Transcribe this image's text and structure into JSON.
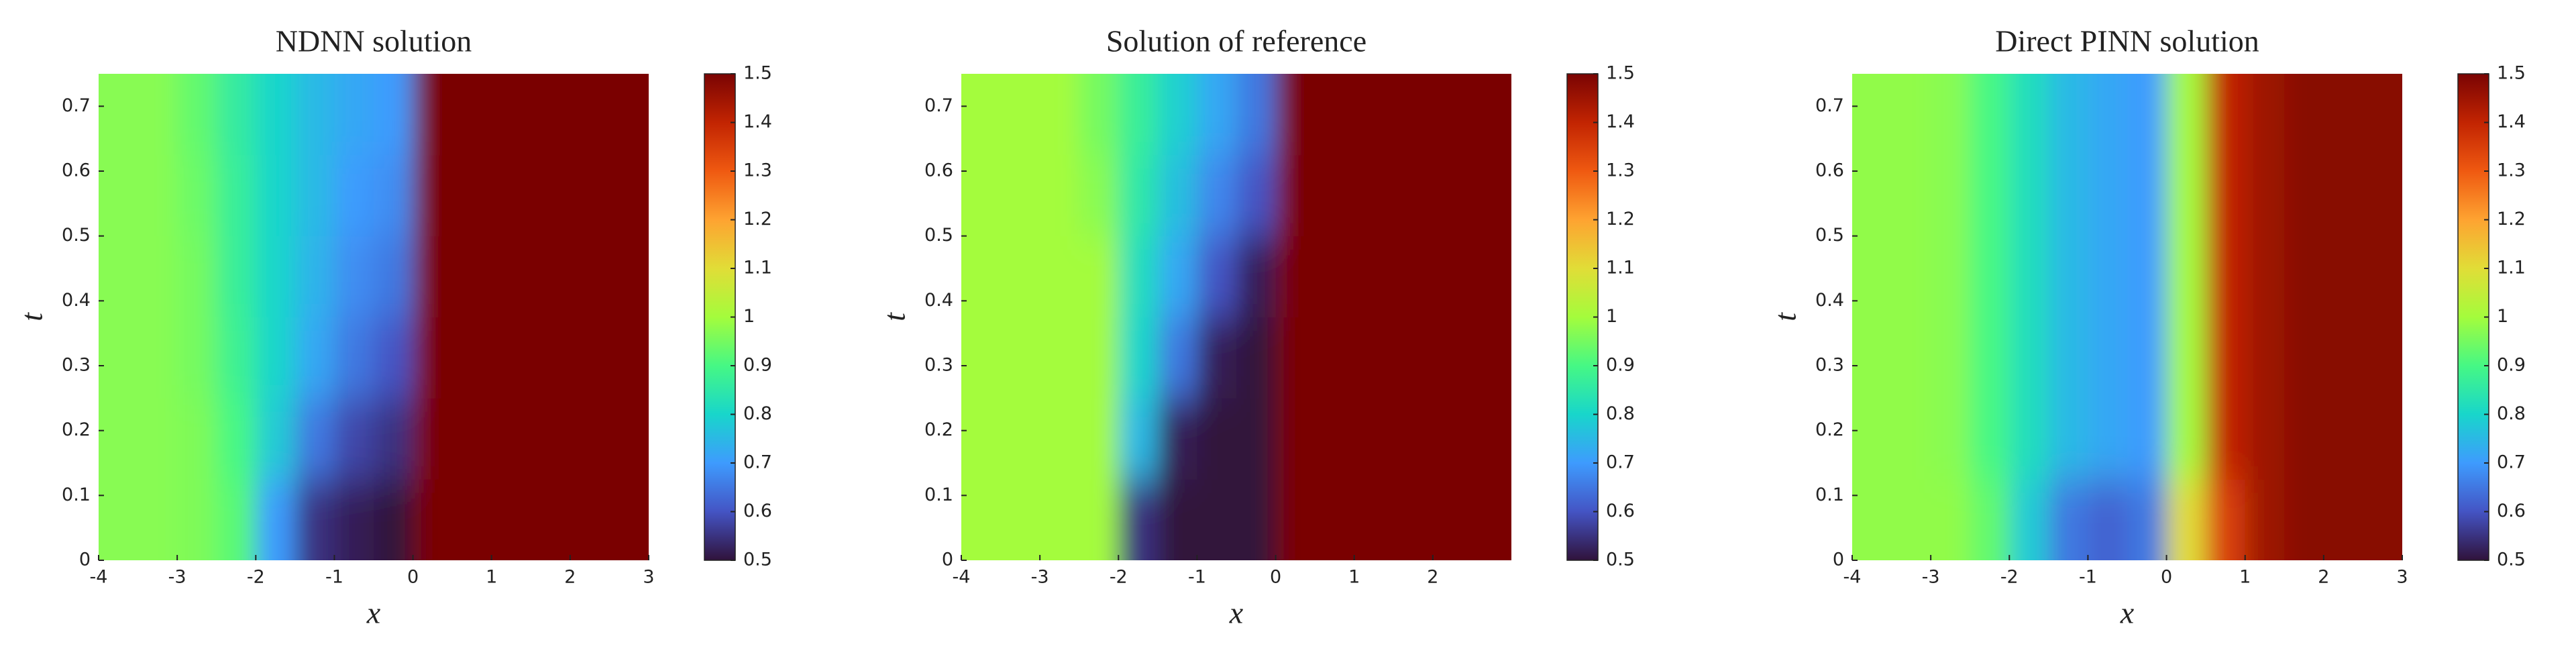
{
  "chart_data": [
    {
      "type": "heatmap",
      "title": "NDNN solution",
      "xlabel": "x",
      "ylabel": "t",
      "xlim": [
        -4,
        3
      ],
      "ylim": [
        0,
        0.75
      ],
      "xticks": [
        -4,
        -3,
        -2,
        -1,
        0,
        1,
        2,
        3
      ],
      "yticks": [
        0,
        0.1,
        0.2,
        0.3,
        0.4,
        0.5,
        0.6,
        0.7
      ],
      "clim": [
        0.5,
        1.5
      ],
      "cticks": [
        0.5,
        0.6,
        0.7,
        0.8,
        0.9,
        1,
        1.1,
        1.2,
        1.3,
        1.4,
        1.5
      ],
      "colormap": [
        "#30123b",
        "#4454c4",
        "#3e9bfe",
        "#18d6cb",
        "#46f884",
        "#a4fc3c",
        "#e1dd37",
        "#fea331",
        "#ef5911",
        "#c22402",
        "#7a0403"
      ],
      "x": [
        -3.75,
        -3.25,
        -2.75,
        -2.25,
        -1.75,
        -1.25,
        -0.75,
        -0.25,
        0.25,
        0.75,
        1.25,
        1.75,
        2.25,
        2.75
      ],
      "y": [
        0.0625,
        0.1875,
        0.3125,
        0.4375,
        0.5625,
        0.6875
      ],
      "z": [
        [
          0.97,
          0.97,
          0.96,
          0.92,
          0.7,
          0.55,
          0.52,
          0.5,
          1.5,
          1.5,
          1.5,
          1.5,
          1.5,
          1.5
        ],
        [
          0.97,
          0.97,
          0.96,
          0.9,
          0.78,
          0.65,
          0.58,
          0.55,
          1.5,
          1.5,
          1.5,
          1.5,
          1.5,
          1.5
        ],
        [
          0.97,
          0.97,
          0.95,
          0.88,
          0.8,
          0.72,
          0.65,
          0.6,
          1.5,
          1.5,
          1.5,
          1.5,
          1.5,
          1.5
        ],
        [
          0.97,
          0.97,
          0.95,
          0.87,
          0.8,
          0.74,
          0.68,
          0.65,
          1.5,
          1.5,
          1.5,
          1.5,
          1.5,
          1.5
        ],
        [
          0.97,
          0.97,
          0.94,
          0.87,
          0.8,
          0.75,
          0.7,
          0.68,
          1.5,
          1.5,
          1.5,
          1.5,
          1.5,
          1.5
        ],
        [
          0.97,
          0.97,
          0.93,
          0.86,
          0.8,
          0.75,
          0.72,
          0.7,
          1.5,
          1.5,
          1.5,
          1.5,
          1.5,
          1.5
        ]
      ]
    },
    {
      "type": "heatmap",
      "title": "Solution of reference",
      "xlabel": "x",
      "ylabel": "t",
      "xlim": [
        -4,
        3
      ],
      "ylim": [
        0,
        0.75
      ],
      "xticks": [
        -4,
        -3,
        -2,
        -1,
        0,
        1,
        2
      ],
      "yticks": [
        0,
        0.1,
        0.2,
        0.3,
        0.4,
        0.5,
        0.6,
        0.7
      ],
      "clim": [
        0.5,
        1.5
      ],
      "cticks": [
        0.5,
        0.6,
        0.7,
        0.8,
        0.9,
        1,
        1.1,
        1.2,
        1.3,
        1.4,
        1.5
      ],
      "colormap": [
        "#30123b",
        "#4454c4",
        "#3e9bfe",
        "#18d6cb",
        "#46f884",
        "#a4fc3c",
        "#e1dd37",
        "#fea331",
        "#ef5911",
        "#c22402",
        "#7a0403"
      ],
      "x": [
        -3.75,
        -3.25,
        -2.75,
        -2.25,
        -1.75,
        -1.25,
        -0.75,
        -0.25,
        0.25,
        0.75,
        1.25,
        1.75,
        2.25,
        2.75
      ],
      "y": [
        0.0625,
        0.1875,
        0.3125,
        0.4375,
        0.5625,
        0.6875
      ],
      "z": [
        [
          1,
          1,
          1,
          1,
          0.55,
          0.5,
          0.5,
          0.5,
          1.5,
          1.5,
          1.5,
          1.5,
          1.5,
          1.5
        ],
        [
          1,
          1,
          1,
          1,
          0.75,
          0.52,
          0.5,
          0.5,
          1.5,
          1.5,
          1.5,
          1.5,
          1.5,
          1.5
        ],
        [
          1,
          1,
          1,
          1,
          0.8,
          0.65,
          0.52,
          0.5,
          1.5,
          1.5,
          1.5,
          1.5,
          1.5,
          1.5
        ],
        [
          1,
          1,
          1,
          1,
          0.82,
          0.72,
          0.6,
          0.52,
          1.5,
          1.5,
          1.5,
          1.5,
          1.5,
          1.5
        ],
        [
          1,
          1,
          1,
          0.97,
          0.85,
          0.76,
          0.67,
          0.6,
          1.5,
          1.5,
          1.5,
          1.5,
          1.5,
          1.5
        ],
        [
          1,
          1,
          1,
          0.95,
          0.87,
          0.79,
          0.72,
          0.65,
          1.5,
          1.5,
          1.5,
          1.5,
          1.5,
          1.5
        ]
      ]
    },
    {
      "type": "heatmap",
      "title": "Direct PINN solution",
      "xlabel": "x",
      "ylabel": "t",
      "xlim": [
        -4,
        3
      ],
      "ylim": [
        0,
        0.75
      ],
      "xticks": [
        -4,
        -3,
        -2,
        -1,
        0,
        1,
        2,
        3
      ],
      "yticks": [
        0,
        0.1,
        0.2,
        0.3,
        0.4,
        0.5,
        0.6,
        0.7
      ],
      "clim": [
        0.5,
        1.5
      ],
      "cticks": [
        0.5,
        0.6,
        0.7,
        0.8,
        0.9,
        1,
        1.1,
        1.2,
        1.3,
        1.4,
        1.5
      ],
      "colormap": [
        "#30123b",
        "#4454c4",
        "#3e9bfe",
        "#18d6cb",
        "#46f884",
        "#a4fc3c",
        "#e1dd37",
        "#fea331",
        "#ef5911",
        "#c22402",
        "#7a0403"
      ],
      "x": [
        -3.75,
        -3.25,
        -2.75,
        -2.25,
        -1.75,
        -1.25,
        -0.75,
        -0.25,
        0.25,
        0.75,
        1.25,
        1.75,
        2.25,
        2.75
      ],
      "y": [
        0.0625,
        0.1875,
        0.3125,
        0.4375,
        0.5625,
        0.6875
      ],
      "z": [
        [
          0.98,
          0.98,
          0.98,
          0.93,
          0.78,
          0.65,
          0.62,
          0.65,
          1.1,
          1.35,
          1.45,
          1.48,
          1.48,
          1.48
        ],
        [
          0.98,
          0.98,
          0.97,
          0.9,
          0.82,
          0.75,
          0.72,
          0.7,
          1.0,
          1.4,
          1.45,
          1.48,
          1.48,
          1.48
        ],
        [
          0.98,
          0.98,
          0.97,
          0.9,
          0.82,
          0.75,
          0.72,
          0.7,
          1.0,
          1.4,
          1.45,
          1.48,
          1.48,
          1.48
        ],
        [
          0.98,
          0.98,
          0.97,
          0.9,
          0.82,
          0.75,
          0.72,
          0.7,
          1.0,
          1.4,
          1.45,
          1.48,
          1.48,
          1.48
        ],
        [
          0.98,
          0.98,
          0.97,
          0.9,
          0.82,
          0.75,
          0.72,
          0.7,
          1.0,
          1.4,
          1.45,
          1.48,
          1.48,
          1.48
        ],
        [
          0.98,
          0.98,
          0.97,
          0.9,
          0.82,
          0.75,
          0.72,
          0.7,
          1.0,
          1.4,
          1.45,
          1.48,
          1.48,
          1.48
        ]
      ]
    }
  ]
}
